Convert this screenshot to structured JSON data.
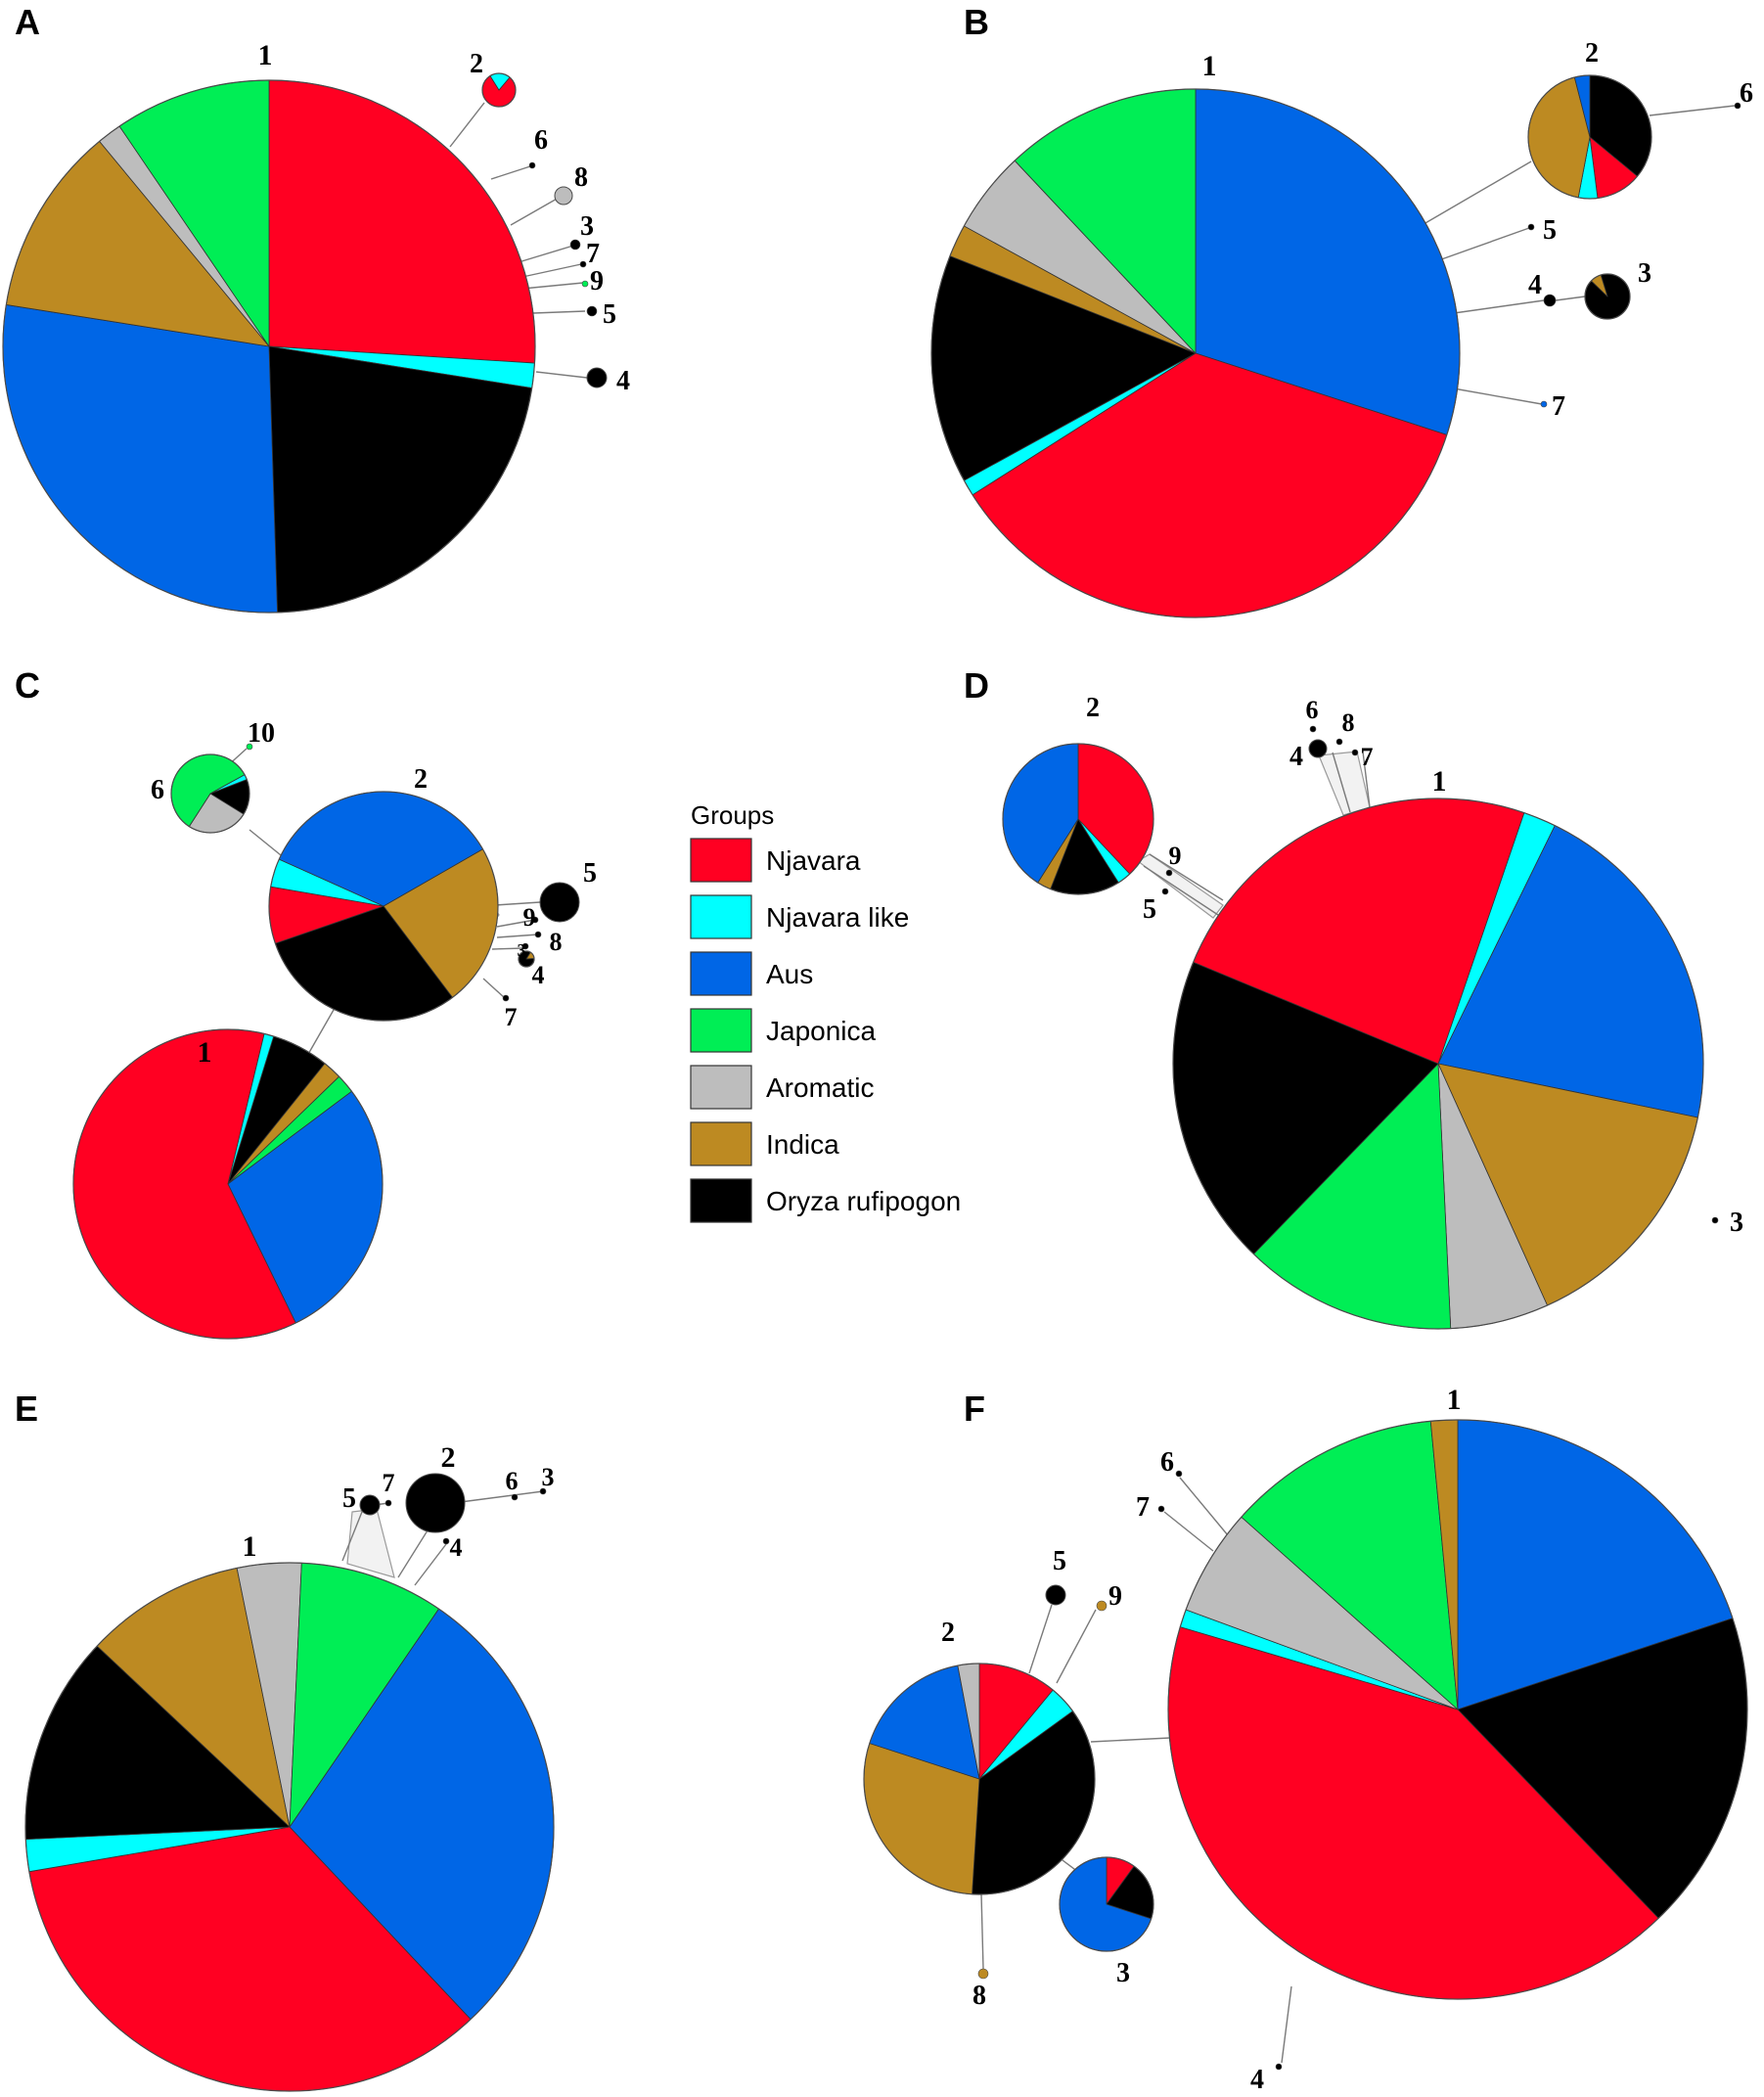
{
  "colors": {
    "njavara": "#ff0022",
    "njavara_like": "#00ffff",
    "aus": "#0066e6",
    "japonica": "#00ee55",
    "aromatic": "#bdbdbd",
    "indica": "#bd8a22",
    "rufipogon": "#000000"
  },
  "legend": {
    "title": "Groups",
    "items": [
      {
        "key": "njavara",
        "label": "Njavara"
      },
      {
        "key": "njavara_like",
        "label": "Njavara like"
      },
      {
        "key": "aus",
        "label": "Aus"
      },
      {
        "key": "japonica",
        "label": "Japonica"
      },
      {
        "key": "aromatic",
        "label": "Aromatic"
      },
      {
        "key": "indica",
        "label": "Indica"
      },
      {
        "key": "rufipogon",
        "label": "Oryza rufipogon"
      }
    ]
  },
  "panels": [
    {
      "letter": "A",
      "haplotypes": [
        {
          "id": "1",
          "slices": [
            {
              "g": "njavara",
              "v": 26
            },
            {
              "g": "njavara_like",
              "v": 1.5
            },
            {
              "g": "rufipogon",
              "v": 22
            },
            {
              "g": "aus",
              "v": 28
            },
            {
              "g": "indica",
              "v": 11.5
            },
            {
              "g": "aromatic",
              "v": 1.5
            },
            {
              "g": "japonica",
              "v": 9.5
            }
          ]
        },
        {
          "id": "2",
          "slices": [
            {
              "g": "njavara",
              "v": 80
            },
            {
              "g": "njavara_like",
              "v": 20
            }
          ]
        },
        {
          "id": "3",
          "slices": [
            {
              "g": "rufipogon",
              "v": 1
            }
          ]
        },
        {
          "id": "4",
          "slices": [
            {
              "g": "rufipogon",
              "v": 1
            }
          ]
        },
        {
          "id": "5",
          "slices": [
            {
              "g": "rufipogon",
              "v": 1
            }
          ]
        },
        {
          "id": "6",
          "slices": [
            {
              "g": "rufipogon",
              "v": 1
            }
          ]
        },
        {
          "id": "7",
          "slices": [
            {
              "g": "rufipogon",
              "v": 1
            }
          ]
        },
        {
          "id": "8",
          "slices": [
            {
              "g": "aromatic",
              "v": 1
            }
          ]
        },
        {
          "id": "9",
          "slices": [
            {
              "g": "japonica",
              "v": 1
            }
          ]
        }
      ]
    },
    {
      "letter": "B",
      "haplotypes": [
        {
          "id": "1",
          "slices": [
            {
              "g": "aus",
              "v": 30
            },
            {
              "g": "njavara",
              "v": 36
            },
            {
              "g": "njavara_like",
              "v": 1
            },
            {
              "g": "rufipogon",
              "v": 14
            },
            {
              "g": "indica",
              "v": 2
            },
            {
              "g": "aromatic",
              "v": 5
            },
            {
              "g": "japonica",
              "v": 12
            }
          ]
        },
        {
          "id": "2",
          "slices": [
            {
              "g": "rufipogon",
              "v": 36
            },
            {
              "g": "njavara",
              "v": 12
            },
            {
              "g": "njavara_like",
              "v": 5
            },
            {
              "g": "indica",
              "v": 43
            },
            {
              "g": "aus",
              "v": 4
            }
          ]
        },
        {
          "id": "3",
          "slices": [
            {
              "g": "rufipogon",
              "v": 92
            },
            {
              "g": "indica",
              "v": 8
            }
          ]
        },
        {
          "id": "4",
          "slices": [
            {
              "g": "rufipogon",
              "v": 1
            }
          ]
        },
        {
          "id": "5",
          "slices": [
            {
              "g": "rufipogon",
              "v": 1
            }
          ]
        },
        {
          "id": "6",
          "slices": [
            {
              "g": "rufipogon",
              "v": 1
            }
          ]
        },
        {
          "id": "7",
          "slices": [
            {
              "g": "aus",
              "v": 1
            }
          ]
        }
      ]
    },
    {
      "letter": "C",
      "haplotypes": [
        {
          "id": "1",
          "slices": [
            {
              "g": "rufipogon",
              "v": 6
            },
            {
              "g": "indica",
              "v": 2
            },
            {
              "g": "japonica",
              "v": 2
            },
            {
              "g": "aus",
              "v": 28
            },
            {
              "g": "njavara",
              "v": 61
            },
            {
              "g": "njavara_like",
              "v": 1
            }
          ]
        },
        {
          "id": "2",
          "slices": [
            {
              "g": "indica",
              "v": 23
            },
            {
              "g": "rufipogon",
              "v": 30
            },
            {
              "g": "njavara",
              "v": 8
            },
            {
              "g": "njavara_like",
              "v": 4
            },
            {
              "g": "aus",
              "v": 35
            }
          ]
        },
        {
          "id": "3",
          "slices": [
            {
              "g": "rufipogon",
              "v": 1
            }
          ]
        },
        {
          "id": "4",
          "slices": [
            {
              "g": "rufipogon",
              "v": 85
            },
            {
              "g": "indica",
              "v": 15
            }
          ]
        },
        {
          "id": "5",
          "slices": [
            {
              "g": "rufipogon",
              "v": 1
            }
          ]
        },
        {
          "id": "6",
          "slices": [
            {
              "g": "rufipogon",
              "v": 14
            },
            {
              "g": "aromatic",
              "v": 24
            },
            {
              "g": "japonica",
              "v": 55
            },
            {
              "g": "njavara_like",
              "v": 2
            }
          ]
        },
        {
          "id": "7",
          "slices": [
            {
              "g": "rufipogon",
              "v": 1
            }
          ]
        },
        {
          "id": "8",
          "slices": [
            {
              "g": "rufipogon",
              "v": 1
            }
          ]
        },
        {
          "id": "9",
          "slices": [
            {
              "g": "rufipogon",
              "v": 1
            }
          ]
        },
        {
          "id": "10",
          "slices": [
            {
              "g": "japonica",
              "v": 1
            }
          ]
        }
      ]
    },
    {
      "letter": "D",
      "haplotypes": [
        {
          "id": "1",
          "slices": [
            {
              "g": "njavara_like",
              "v": 2
            },
            {
              "g": "aus",
              "v": 21
            },
            {
              "g": "indica",
              "v": 15
            },
            {
              "g": "aromatic",
              "v": 6
            },
            {
              "g": "japonica",
              "v": 13
            },
            {
              "g": "rufipogon",
              "v": 19
            },
            {
              "g": "njavara",
              "v": 24
            }
          ]
        },
        {
          "id": "2",
          "slices": [
            {
              "g": "njavara",
              "v": 38
            },
            {
              "g": "njavara_like",
              "v": 3
            },
            {
              "g": "rufipogon",
              "v": 15
            },
            {
              "g": "indica",
              "v": 3
            },
            {
              "g": "aus",
              "v": 41
            }
          ]
        },
        {
          "id": "3",
          "slices": [
            {
              "g": "rufipogon",
              "v": 1
            }
          ]
        },
        {
          "id": "4",
          "slices": [
            {
              "g": "rufipogon",
              "v": 1
            }
          ]
        },
        {
          "id": "5",
          "slices": [
            {
              "g": "rufipogon",
              "v": 1
            }
          ]
        },
        {
          "id": "6",
          "slices": [
            {
              "g": "rufipogon",
              "v": 1
            }
          ]
        },
        {
          "id": "7",
          "slices": [
            {
              "g": "rufipogon",
              "v": 1
            }
          ]
        },
        {
          "id": "8",
          "slices": [
            {
              "g": "rufipogon",
              "v": 1
            }
          ]
        },
        {
          "id": "9",
          "slices": [
            {
              "g": "rufipogon",
              "v": 1
            }
          ]
        }
      ]
    },
    {
      "letter": "E",
      "haplotypes": [
        {
          "id": "1",
          "slices": [
            {
              "g": "aus",
              "v": 29
            },
            {
              "g": "njavara",
              "v": 35
            },
            {
              "g": "njavara_like",
              "v": 2
            },
            {
              "g": "rufipogon",
              "v": 13
            },
            {
              "g": "indica",
              "v": 10
            },
            {
              "g": "aromatic",
              "v": 4
            },
            {
              "g": "japonica",
              "v": 9
            }
          ]
        },
        {
          "id": "2",
          "slices": [
            {
              "g": "rufipogon",
              "v": 1
            }
          ]
        },
        {
          "id": "3",
          "slices": [
            {
              "g": "rufipogon",
              "v": 1
            }
          ]
        },
        {
          "id": "4",
          "slices": [
            {
              "g": "rufipogon",
              "v": 1
            }
          ]
        },
        {
          "id": "5",
          "slices": [
            {
              "g": "rufipogon",
              "v": 1
            }
          ]
        },
        {
          "id": "6",
          "slices": [
            {
              "g": "rufipogon",
              "v": 1
            }
          ]
        },
        {
          "id": "7",
          "slices": [
            {
              "g": "rufipogon",
              "v": 1
            }
          ]
        }
      ]
    },
    {
      "letter": "F",
      "haplotypes": [
        {
          "id": "1",
          "slices": [
            {
              "g": "aus",
              "v": 20
            },
            {
              "g": "rufipogon",
              "v": 18
            },
            {
              "g": "njavara",
              "v": 42
            },
            {
              "g": "njavara_like",
              "v": 1
            },
            {
              "g": "aromatic",
              "v": 6
            },
            {
              "g": "japonica",
              "v": 12
            },
            {
              "g": "indica",
              "v": 1.5
            }
          ]
        },
        {
          "id": "2",
          "slices": [
            {
              "g": "njavara",
              "v": 11
            },
            {
              "g": "njavara_like",
              "v": 4
            },
            {
              "g": "rufipogon",
              "v": 36
            },
            {
              "g": "indica",
              "v": 29
            },
            {
              "g": "aus",
              "v": 17
            },
            {
              "g": "aromatic",
              "v": 3
            }
          ]
        },
        {
          "id": "3",
          "slices": [
            {
              "g": "njavara",
              "v": 10
            },
            {
              "g": "rufipogon",
              "v": 20
            },
            {
              "g": "aus",
              "v": 70
            }
          ]
        },
        {
          "id": "4",
          "slices": [
            {
              "g": "rufipogon",
              "v": 1
            }
          ]
        },
        {
          "id": "5",
          "slices": [
            {
              "g": "rufipogon",
              "v": 1
            }
          ]
        },
        {
          "id": "6",
          "slices": [
            {
              "g": "rufipogon",
              "v": 1
            }
          ]
        },
        {
          "id": "7",
          "slices": [
            {
              "g": "rufipogon",
              "v": 1
            }
          ]
        },
        {
          "id": "8",
          "slices": [
            {
              "g": "indica",
              "v": 1
            }
          ]
        },
        {
          "id": "9",
          "slices": [
            {
              "g": "indica",
              "v": 1
            }
          ]
        }
      ]
    }
  ]
}
